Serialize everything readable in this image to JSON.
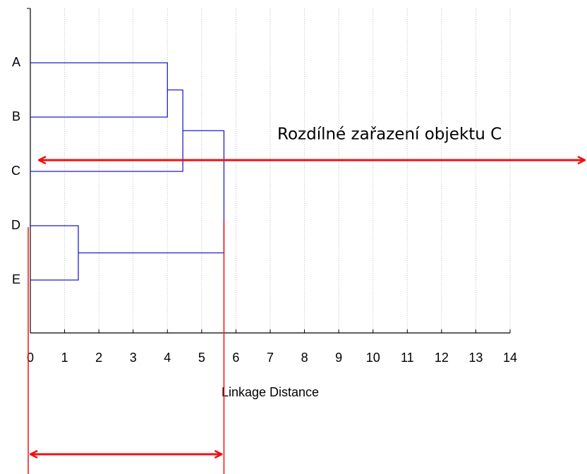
{
  "chart_data": {
    "type": "dendrogram",
    "leaves": [
      "A",
      "B",
      "C",
      "D",
      "E"
    ],
    "merges": [
      {
        "left": 0,
        "right": 1,
        "height": 4.0
      },
      {
        "left": 5,
        "right": 2,
        "height": 4.45
      },
      {
        "left": 3,
        "right": 4,
        "height": 1.4
      },
      {
        "left": 6,
        "right": 7,
        "height": 5.65
      }
    ],
    "color": "#1f1fcc",
    "xlabel": "Linkage Distance",
    "xlim": [
      0,
      14
    ],
    "xticks": [
      0,
      1,
      2,
      3,
      4,
      5,
      6,
      7,
      8,
      9,
      10,
      11,
      12,
      13,
      14
    ],
    "grid": true,
    "annotation": "Rozdílné zařazení objektu C",
    "annotation_color": "#ee1111"
  }
}
